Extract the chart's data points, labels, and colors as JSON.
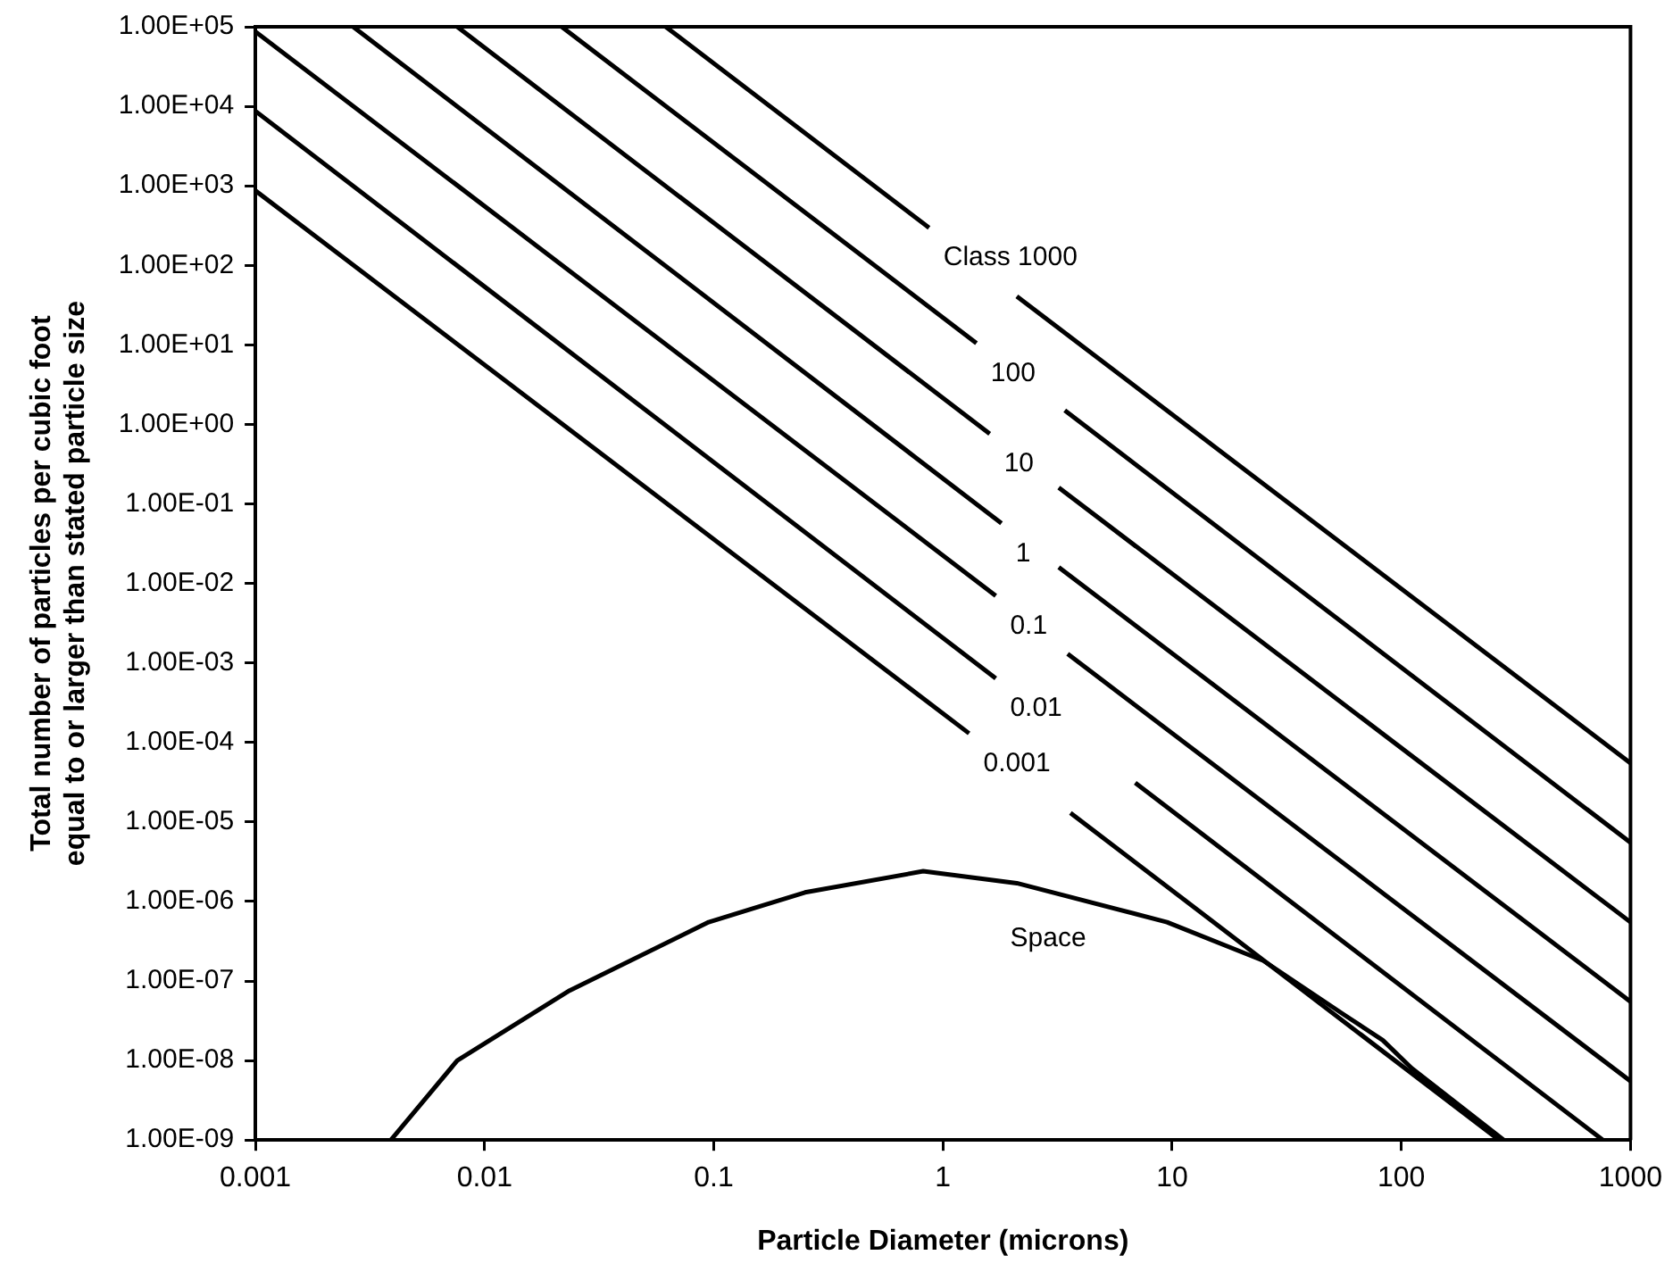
{
  "chart_data": {
    "type": "line",
    "xlabel": "Particle Diameter (microns)",
    "ylabel": "Total number of particles per cubic foot\nequal to or larger than stated particle size",
    "log": "xy",
    "grid": false,
    "legend": false,
    "marker": "none",
    "line_style": "solid",
    "xlim": [
      0.001,
      1000
    ],
    "xticks": [
      0.001,
      0.01,
      0.1,
      1,
      10,
      100,
      1000
    ],
    "ylim": [
      1e-09,
      100000
    ],
    "yticks": [
      {
        "value": 100000,
        "label": "1.00E+05"
      },
      {
        "value": 10000,
        "label": "1.00E+04"
      },
      {
        "value": 1000,
        "label": "1.00E+03"
      },
      {
        "value": 100,
        "label": "1.00E+02"
      },
      {
        "value": 10,
        "label": "1.00E+01"
      },
      {
        "value": 1,
        "label": "1.00E+00"
      },
      {
        "value": 0.1,
        "label": "1.00E-01"
      },
      {
        "value": 0.01,
        "label": "1.00E-02"
      },
      {
        "value": 0.001,
        "label": "1.00E-03"
      },
      {
        "value": 0.0001,
        "label": "1.00E-04"
      },
      {
        "value": 1e-05,
        "label": "1.00E-05"
      },
      {
        "value": 1e-06,
        "label": "1.00E-06"
      },
      {
        "value": 1e-07,
        "label": "1.00E-07"
      },
      {
        "value": 1e-08,
        "label": "1.00E-08"
      },
      {
        "value": 1e-09,
        "label": "1.00E-09"
      }
    ],
    "series": [
      {
        "name": "Class 1000",
        "color": "#000000",
        "x": [
          0.0617,
          0.87,
          1.5,
          2.1,
          1000
        ],
        "values": [
          100000,
          297,
          null,
          40.7,
          5.5e-05
        ]
      },
      {
        "name": "100",
        "color": "#000000",
        "x": [
          0.0217,
          1.4,
          2.2,
          3.4,
          1000
        ],
        "values": [
          100000,
          10.5,
          null,
          1.5,
          5.5e-06
        ]
      },
      {
        "name": "10",
        "color": "#000000",
        "x": [
          0.0076,
          1.6,
          2.3,
          3.2,
          1000
        ],
        "values": [
          100000,
          0.76,
          null,
          0.16,
          5.5e-07
        ]
      },
      {
        "name": "1",
        "color": "#000000",
        "x": [
          0.00267,
          1.8,
          2.4,
          3.2,
          1000
        ],
        "values": [
          100000,
          0.057,
          null,
          0.016,
          5.5e-08
        ]
      },
      {
        "name": "0.1",
        "color": "#000000",
        "x": [
          0.001,
          1.7,
          2.4,
          3.5,
          1000
        ],
        "values": [
          87000,
          0.007,
          null,
          0.0013,
          5.5e-09
        ]
      },
      {
        "name": "0.01",
        "color": "#000000",
        "x": [
          0.001,
          1.7,
          3.5,
          6.9,
          758
        ],
        "values": [
          8700,
          0.00064,
          null,
          3.1e-05,
          1e-09
        ]
      },
      {
        "name": "0.001",
        "color": "#000000",
        "x": [
          0.001,
          1.3,
          2.3,
          3.6,
          267
        ],
        "values": [
          870,
          0.00013,
          null,
          1.3e-05,
          1e-09
        ]
      },
      {
        "name": "Space",
        "color": "#000000",
        "x": [
          0.0039,
          0.0076,
          0.0235,
          0.095,
          0.25,
          0.82,
          2.1,
          9.5,
          25,
          56,
          83,
          111,
          280
        ],
        "values": [
          1e-09,
          1e-08,
          7.6e-08,
          5.5e-07,
          1.3e-06,
          2.4e-06,
          1.7e-06,
          5.5e-07,
          1.8e-07,
          3.8e-08,
          1.8e-08,
          8e-09,
          1e-09
        ]
      }
    ]
  }
}
